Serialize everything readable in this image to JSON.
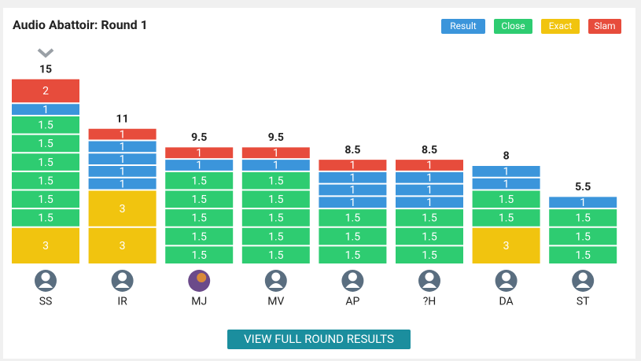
{
  "chart_data": {
    "type": "stacked-bar",
    "title": "Audio Abattoir: Round 1",
    "legend": [
      {
        "name": "Result",
        "color": "#3b95db"
      },
      {
        "name": "Close",
        "color": "#2ecc71"
      },
      {
        "name": "Exact",
        "color": "#f1c40f"
      },
      {
        "name": "Slam",
        "color": "#e74c3c"
      }
    ],
    "categories": [
      "SS",
      "IR",
      "MJ",
      "MV",
      "AP",
      "?H",
      "DA",
      "ST"
    ],
    "totals": [
      15,
      11,
      9.5,
      9.5,
      8.5,
      8.5,
      8,
      5.5
    ],
    "stacks": [
      [
        {
          "series": "Exact",
          "value": 3
        },
        {
          "series": "Close",
          "value": 1.5
        },
        {
          "series": "Close",
          "value": 1.5
        },
        {
          "series": "Close",
          "value": 1.5
        },
        {
          "series": "Close",
          "value": 1.5
        },
        {
          "series": "Close",
          "value": 1.5
        },
        {
          "series": "Close",
          "value": 1.5
        },
        {
          "series": "Result",
          "value": 1
        },
        {
          "series": "Slam",
          "value": 2
        }
      ],
      [
        {
          "series": "Exact",
          "value": 3
        },
        {
          "series": "Exact",
          "value": 3
        },
        {
          "series": "Result",
          "value": 1
        },
        {
          "series": "Result",
          "value": 1
        },
        {
          "series": "Result",
          "value": 1
        },
        {
          "series": "Result",
          "value": 1
        },
        {
          "series": "Slam",
          "value": 1
        }
      ],
      [
        {
          "series": "Close",
          "value": 1.5
        },
        {
          "series": "Close",
          "value": 1.5
        },
        {
          "series": "Close",
          "value": 1.5
        },
        {
          "series": "Close",
          "value": 1.5
        },
        {
          "series": "Close",
          "value": 1.5
        },
        {
          "series": "Result",
          "value": 1
        },
        {
          "series": "Slam",
          "value": 1
        }
      ],
      [
        {
          "series": "Close",
          "value": 1.5
        },
        {
          "series": "Close",
          "value": 1.5
        },
        {
          "series": "Close",
          "value": 1.5
        },
        {
          "series": "Close",
          "value": 1.5
        },
        {
          "series": "Close",
          "value": 1.5
        },
        {
          "series": "Result",
          "value": 1
        },
        {
          "series": "Slam",
          "value": 1
        }
      ],
      [
        {
          "series": "Close",
          "value": 1.5
        },
        {
          "series": "Close",
          "value": 1.5
        },
        {
          "series": "Close",
          "value": 1.5
        },
        {
          "series": "Result",
          "value": 1
        },
        {
          "series": "Result",
          "value": 1
        },
        {
          "series": "Result",
          "value": 1
        },
        {
          "series": "Slam",
          "value": 1
        }
      ],
      [
        {
          "series": "Close",
          "value": 1.5
        },
        {
          "series": "Close",
          "value": 1.5
        },
        {
          "series": "Close",
          "value": 1.5
        },
        {
          "series": "Result",
          "value": 1
        },
        {
          "series": "Result",
          "value": 1
        },
        {
          "series": "Result",
          "value": 1
        },
        {
          "series": "Slam",
          "value": 1
        }
      ],
      [
        {
          "series": "Exact",
          "value": 3
        },
        {
          "series": "Close",
          "value": 1.5
        },
        {
          "series": "Close",
          "value": 1.5
        },
        {
          "series": "Result",
          "value": 1
        },
        {
          "series": "Result",
          "value": 1
        }
      ],
      [
        {
          "series": "Close",
          "value": 1.5
        },
        {
          "series": "Close",
          "value": 1.5
        },
        {
          "series": "Close",
          "value": 1.5
        },
        {
          "series": "Result",
          "value": 1
        }
      ]
    ],
    "button": "VIEW FULL ROUND RESULTS"
  }
}
